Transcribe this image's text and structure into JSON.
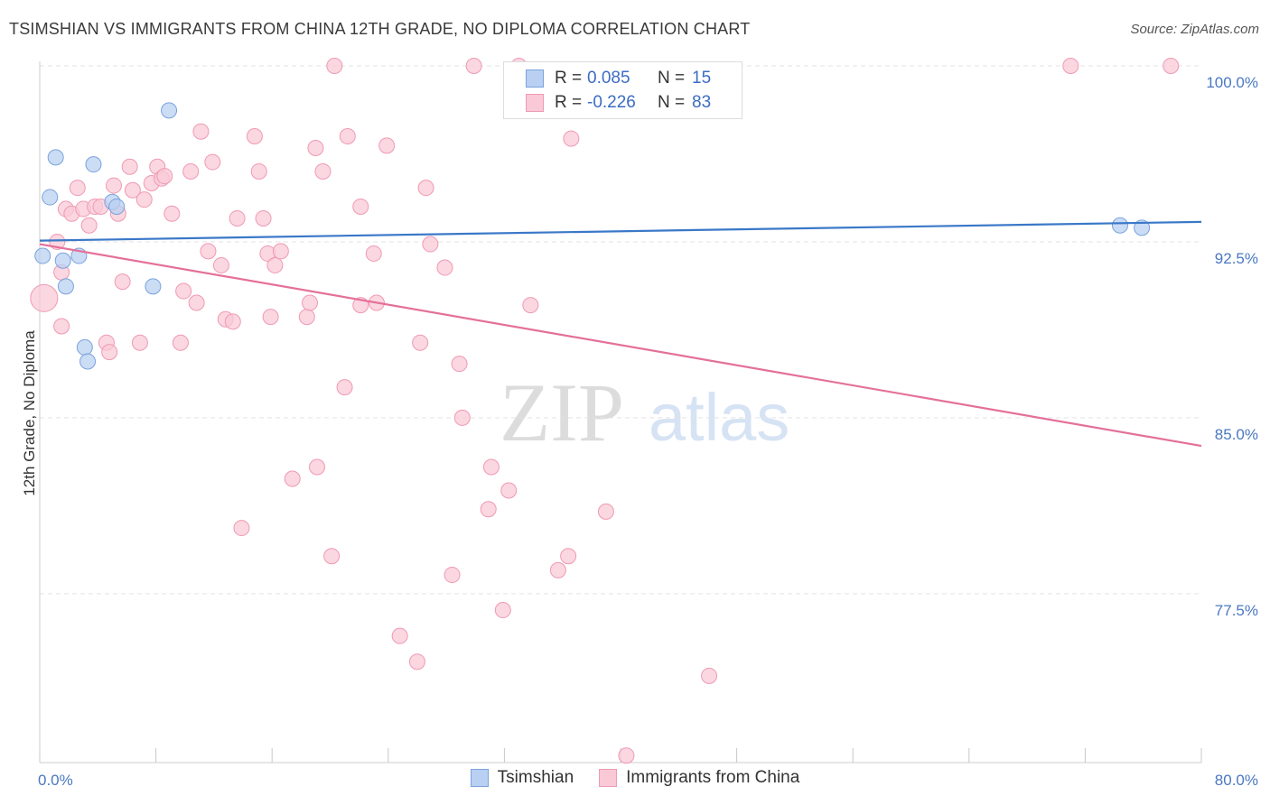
{
  "header": {
    "title": "TSIMSHIAN VS IMMIGRANTS FROM CHINA 12TH GRADE, NO DIPLOMA CORRELATION CHART",
    "source": "Source: ZipAtlas.com"
  },
  "legend": {
    "rows": [
      {
        "r_label": "R =",
        "r_value": "0.085",
        "n_label": "N =",
        "n_value": "15"
      },
      {
        "r_label": "R =",
        "r_value": "-0.226",
        "n_label": "N =",
        "n_value": "83"
      }
    ]
  },
  "watermark": {
    "zip": "ZIP",
    "atlas": "atlas"
  },
  "colors": {
    "blue_fill": "#b9d0f2",
    "blue_stroke": "#7aa3dc",
    "blue_line": "#3a78c8",
    "pink_fill": "#f9c9d7",
    "pink_stroke": "#ef9ab3",
    "pink_line": "#e4709a",
    "tick_text": "#4a78c2"
  },
  "chart_data": {
    "type": "scatter",
    "title": "TSIMSHIAN VS IMMIGRANTS FROM CHINA 12TH GRADE, NO DIPLOMA CORRELATION CHART",
    "xlabel": "",
    "ylabel": "12th Grade, No Diploma",
    "xlim": [
      0,
      80
    ],
    "ylim": [
      70.3,
      100.5
    ],
    "x_tick_labels": [
      "0.0%",
      "80.0%"
    ],
    "y_ticks": [
      100.0,
      92.5,
      85.0,
      77.5
    ],
    "y_tick_labels": [
      "100.0%",
      "92.5%",
      "85.0%",
      "77.5%"
    ],
    "series": [
      {
        "name": "Tsimshian",
        "color": "blue",
        "r": 0.085,
        "n": 15,
        "points": [
          [
            0.2,
            91.9
          ],
          [
            1.1,
            96.1
          ],
          [
            0.7,
            94.4
          ],
          [
            1.6,
            91.7
          ],
          [
            1.8,
            90.6
          ],
          [
            2.7,
            91.9
          ],
          [
            3.7,
            95.8
          ],
          [
            8.9,
            98.1
          ],
          [
            5.0,
            94.2
          ],
          [
            5.3,
            94.0
          ],
          [
            3.1,
            88.0
          ],
          [
            3.3,
            87.4
          ],
          [
            7.8,
            90.6
          ],
          [
            74.4,
            93.2
          ],
          [
            75.9,
            93.1
          ]
        ],
        "trend": {
          "x": [
            0,
            80
          ],
          "y": [
            92.55,
            93.35
          ]
        }
      },
      {
        "name": "Immigrants from China",
        "color": "pink",
        "r": -0.226,
        "n": 83,
        "points": [
          [
            0.3,
            90.1
          ],
          [
            1.2,
            92.5
          ],
          [
            1.5,
            91.2
          ],
          [
            1.8,
            93.9
          ],
          [
            2.2,
            93.7
          ],
          [
            2.6,
            94.8
          ],
          [
            3.0,
            93.9
          ],
          [
            3.4,
            93.2
          ],
          [
            3.8,
            94.0
          ],
          [
            4.2,
            94.0
          ],
          [
            4.6,
            88.2
          ],
          [
            5.1,
            94.9
          ],
          [
            5.4,
            93.7
          ],
          [
            5.7,
            90.8
          ],
          [
            6.2,
            95.7
          ],
          [
            6.4,
            94.7
          ],
          [
            6.9,
            88.2
          ],
          [
            7.2,
            94.3
          ],
          [
            7.7,
            95.0
          ],
          [
            8.1,
            95.7
          ],
          [
            8.4,
            95.2
          ],
          [
            8.6,
            95.3
          ],
          [
            9.1,
            93.7
          ],
          [
            9.7,
            88.2
          ],
          [
            9.9,
            90.4
          ],
          [
            10.4,
            95.5
          ],
          [
            10.8,
            89.9
          ],
          [
            11.1,
            97.2
          ],
          [
            11.6,
            92.1
          ],
          [
            11.9,
            95.9
          ],
          [
            12.5,
            91.5
          ],
          [
            12.8,
            89.2
          ],
          [
            13.3,
            89.1
          ],
          [
            13.6,
            93.5
          ],
          [
            13.9,
            80.3
          ],
          [
            14.8,
            97.0
          ],
          [
            15.1,
            95.5
          ],
          [
            15.4,
            93.5
          ],
          [
            15.7,
            92.0
          ],
          [
            15.9,
            89.3
          ],
          [
            16.2,
            91.5
          ],
          [
            16.6,
            92.1
          ],
          [
            17.4,
            82.4
          ],
          [
            18.4,
            89.3
          ],
          [
            18.6,
            89.9
          ],
          [
            19.0,
            96.5
          ],
          [
            19.1,
            82.9
          ],
          [
            19.5,
            95.5
          ],
          [
            20.1,
            79.1
          ],
          [
            20.3,
            100.0
          ],
          [
            21.0,
            86.3
          ],
          [
            21.2,
            97.0
          ],
          [
            22.1,
            89.8
          ],
          [
            22.1,
            94.0
          ],
          [
            23.0,
            92.0
          ],
          [
            23.2,
            89.9
          ],
          [
            23.9,
            96.6
          ],
          [
            24.8,
            75.7
          ],
          [
            26.0,
            74.6
          ],
          [
            26.2,
            88.2
          ],
          [
            26.6,
            94.8
          ],
          [
            26.9,
            92.4
          ],
          [
            27.9,
            91.4
          ],
          [
            28.4,
            78.3
          ],
          [
            28.9,
            87.3
          ],
          [
            29.1,
            85.0
          ],
          [
            29.9,
            100.0
          ],
          [
            30.9,
            81.1
          ],
          [
            31.1,
            82.9
          ],
          [
            31.9,
            76.8
          ],
          [
            32.3,
            81.9
          ],
          [
            33.0,
            100.0
          ],
          [
            33.8,
            89.8
          ],
          [
            35.7,
            78.5
          ],
          [
            36.4,
            79.1
          ],
          [
            36.6,
            96.9
          ],
          [
            39.0,
            81.0
          ],
          [
            40.4,
            70.6
          ],
          [
            46.1,
            74.0
          ],
          [
            71.0,
            100.0
          ],
          [
            77.9,
            100.0
          ],
          [
            1.5,
            88.9
          ],
          [
            4.8,
            87.8
          ]
        ],
        "trend": {
          "x": [
            0,
            80
          ],
          "y": [
            92.4,
            83.8
          ]
        }
      }
    ]
  },
  "bottom_legend": [
    {
      "label": "Tsimshian"
    },
    {
      "label": "Immigrants from China"
    }
  ]
}
